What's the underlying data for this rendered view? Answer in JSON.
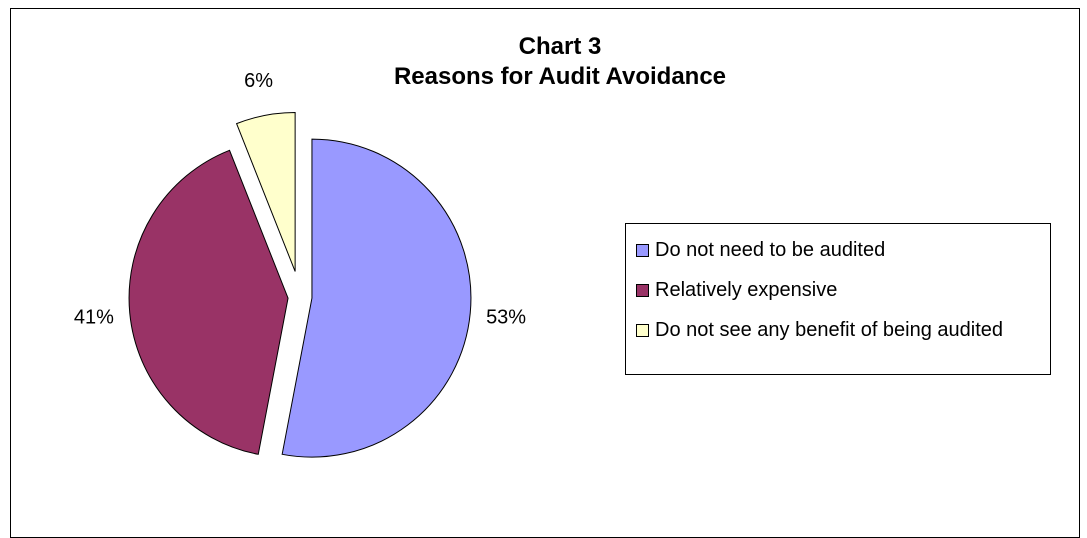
{
  "chart_data": {
    "type": "pie",
    "title": "Chart 3",
    "subtitle": "Reasons for Audit Avoidance",
    "categories": [
      "Do not need to be audited",
      "Relatively expensive",
      "Do not see any benefit of being audited"
    ],
    "values": [
      53,
      41,
      6
    ],
    "data_labels": [
      "53%",
      "41%",
      "6%"
    ],
    "colors": [
      "#9999FF",
      "#993366",
      "#FFFFCC"
    ],
    "exploded": true,
    "legend_position": "right",
    "grid": false
  }
}
